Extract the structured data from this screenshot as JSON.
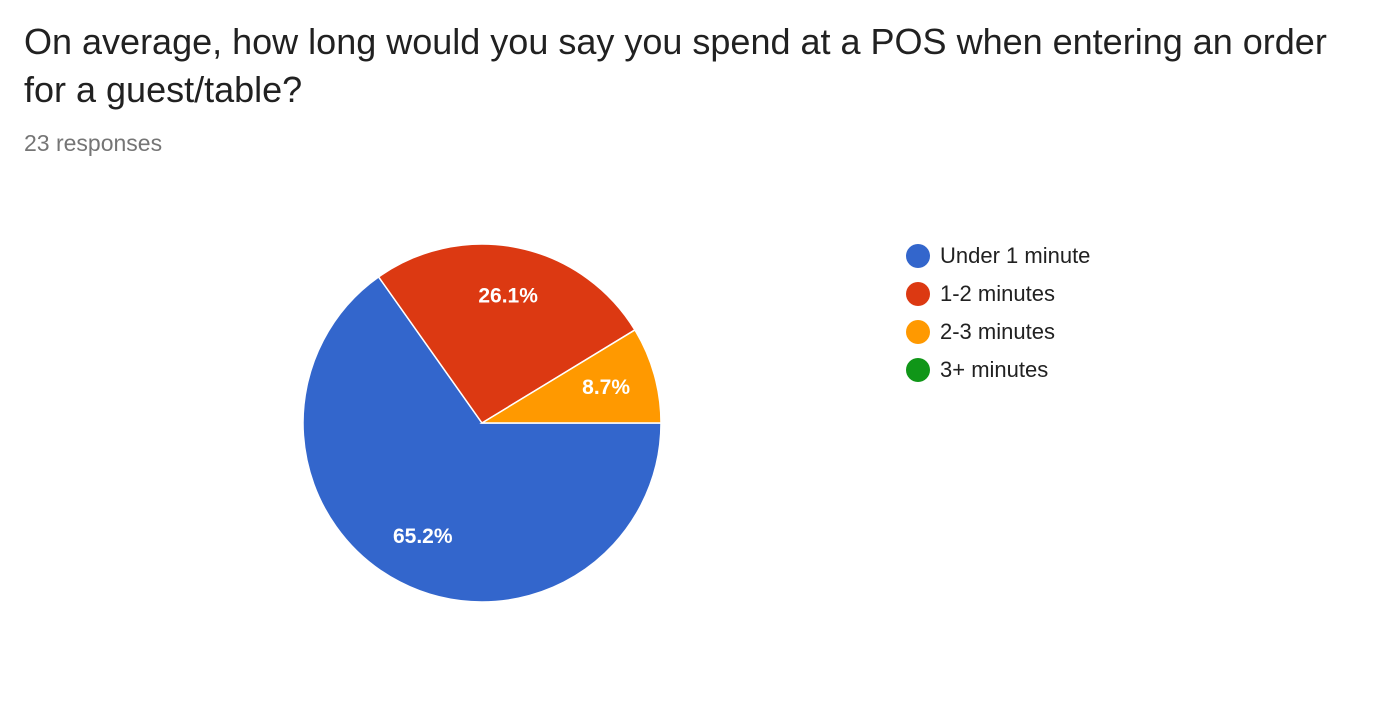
{
  "chart_data": {
    "type": "pie",
    "title": "On average, how long would you say you spend at a POS when entering an order for a guest/table?",
    "subtitle": "23 responses",
    "categories": [
      "Under 1 minute",
      "1-2 minutes",
      "2-3 minutes",
      "3+ minutes"
    ],
    "values": [
      65.2,
      26.1,
      8.7,
      0
    ],
    "value_labels": [
      "65.2%",
      "26.1%",
      "8.7%",
      null
    ],
    "colors": [
      "#3366cc",
      "#dc3912",
      "#ff9900",
      "#109618"
    ],
    "legend": "right"
  }
}
